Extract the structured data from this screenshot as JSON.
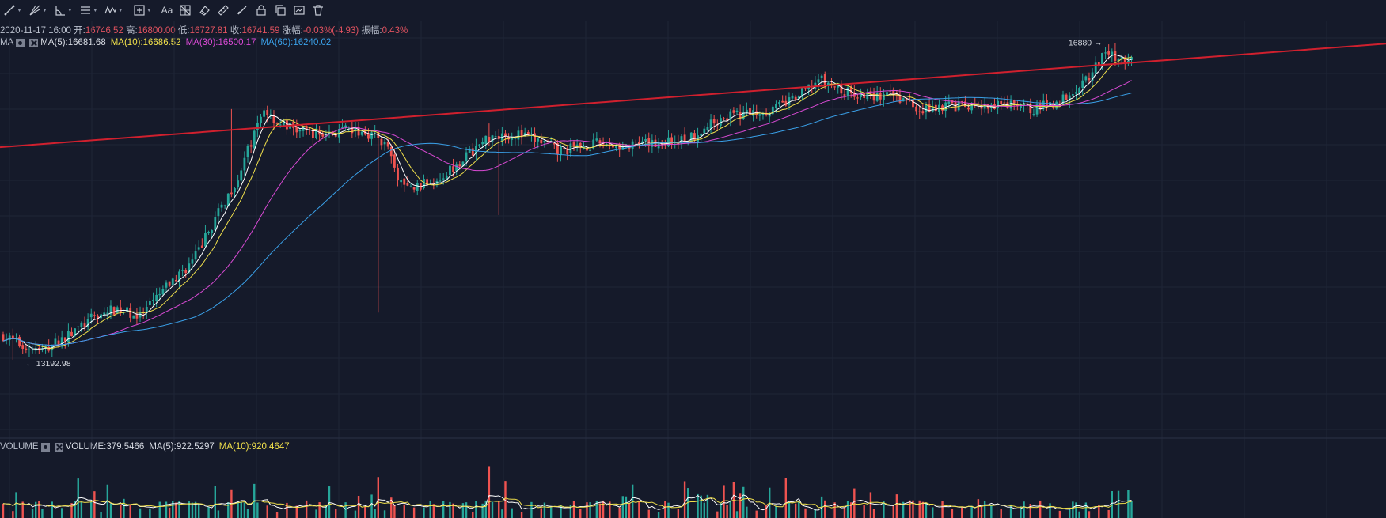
{
  "toolbar": {
    "items": [
      {
        "icon": "trend-line-icon",
        "dropdown": true
      },
      {
        "icon": "fib-fan-icon",
        "dropdown": true
      },
      {
        "icon": "angle-icon",
        "dropdown": true
      },
      {
        "icon": "parallel-lines-icon",
        "dropdown": true
      },
      {
        "icon": "wave-pattern-icon",
        "dropdown": true
      },
      {
        "icon": "measure-box-icon",
        "dropdown": true
      },
      {
        "icon": "text-tool-icon",
        "label": "Aa"
      },
      {
        "icon": "pattern-grid-icon"
      },
      {
        "icon": "eraser-icon"
      },
      {
        "icon": "ruler-icon"
      },
      {
        "icon": "brush-icon"
      },
      {
        "icon": "lock-icon"
      },
      {
        "icon": "copy-icon"
      },
      {
        "icon": "screenshot-icon"
      },
      {
        "icon": "trash-icon"
      }
    ]
  },
  "info": {
    "datetime": "2020-11-17 16:00",
    "open_label": "开:",
    "open": "16746.52",
    "high_label": "高:",
    "high": "16800.00",
    "low_label": "低:",
    "low": "16727.81",
    "close_label": "收:",
    "close": "16741.59",
    "change_label": "涨幅:",
    "change": "-0.03%(-4.93)",
    "amplitude_label": "振幅:",
    "amplitude": "0.43%"
  },
  "ma_indicator": {
    "name": "MA",
    "ma5": "MA(5):16681.68",
    "ma10": "MA(10):16686.52",
    "ma30": "MA(30):16500.17",
    "ma60": "MA(60):16240.02"
  },
  "volume_indicator": {
    "name": "VOLUME",
    "volume": "VOLUME:379.5466",
    "ma5": "MA(5):922.5297",
    "ma10": "MA(10):920.4647"
  },
  "annotations": {
    "high_marker": "16880 →",
    "low_marker": "← 13192.98"
  },
  "colors": {
    "background": "#151a2a",
    "up": "#26a69a",
    "down": "#ef5350",
    "ma5": "#ffffff",
    "ma10": "#f0e04b",
    "ma30": "#d94ad4",
    "ma60": "#3aa0e8",
    "trendline": "#d0202e"
  },
  "chart_data": {
    "type": "candlestick",
    "price_anchors": [
      [
        0,
        13480
      ],
      [
        6,
        13350
      ],
      [
        12,
        13300
      ],
      [
        20,
        13480
      ],
      [
        28,
        13700
      ],
      [
        35,
        13800
      ],
      [
        42,
        13700
      ],
      [
        50,
        14050
      ],
      [
        58,
        14350
      ],
      [
        65,
        14850
      ],
      [
        72,
        15350
      ],
      [
        80,
        16150
      ],
      [
        84,
        16000
      ],
      [
        90,
        15900
      ],
      [
        98,
        15850
      ],
      [
        106,
        15900
      ],
      [
        114,
        15850
      ],
      [
        118,
        15700
      ],
      [
        120,
        15400
      ],
      [
        124,
        15200
      ],
      [
        128,
        15250
      ],
      [
        134,
        15350
      ],
      [
        142,
        15600
      ],
      [
        150,
        15850
      ],
      [
        158,
        15850
      ],
      [
        166,
        15750
      ],
      [
        170,
        15650
      ],
      [
        176,
        15700
      ],
      [
        184,
        15750
      ],
      [
        192,
        15700
      ],
      [
        200,
        15750
      ],
      [
        210,
        15800
      ],
      [
        220,
        16050
      ],
      [
        228,
        16100
      ],
      [
        236,
        16150
      ],
      [
        244,
        16300
      ],
      [
        250,
        16500
      ],
      [
        258,
        16350
      ],
      [
        266,
        16300
      ],
      [
        274,
        16300
      ],
      [
        282,
        16150
      ],
      [
        290,
        16200
      ],
      [
        300,
        16150
      ],
      [
        308,
        16200
      ],
      [
        316,
        16150
      ],
      [
        324,
        16250
      ],
      [
        332,
        16500
      ],
      [
        338,
        16800
      ],
      [
        342,
        16770
      ],
      [
        346,
        16700
      ]
    ],
    "candle_count": 347,
    "ylim": [
      12950,
      17100
    ],
    "visible_extremes": {
      "high": 16880,
      "low": 13192.98
    },
    "volume_ylim": [
      0,
      4000
    ],
    "grid": true
  }
}
